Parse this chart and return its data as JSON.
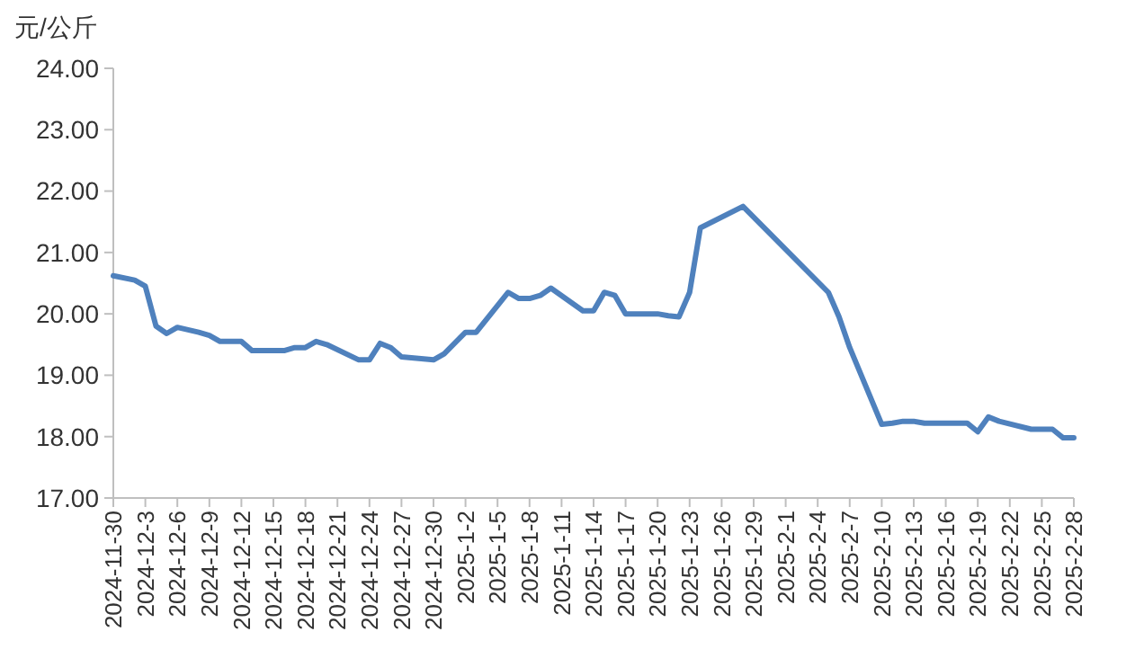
{
  "chart_data": {
    "type": "line",
    "ylabel": "元/公斤",
    "grid": false,
    "marker": "none",
    "line_style": "solid",
    "x": [
      "2024-11-30",
      "2024-12-02",
      "2024-12-03",
      "2024-12-04",
      "2024-12-05",
      "2024-12-06",
      "2024-12-08",
      "2024-12-09",
      "2024-12-10",
      "2024-12-12",
      "2024-12-13",
      "2024-12-16",
      "2024-12-17",
      "2024-12-18",
      "2024-12-19",
      "2024-12-20",
      "2024-12-23",
      "2024-12-24",
      "2024-12-25",
      "2024-12-26",
      "2024-12-27",
      "2024-12-30",
      "2024-12-31",
      "2025-01-02",
      "2025-01-03",
      "2025-01-06",
      "2025-01-07",
      "2025-01-08",
      "2025-01-09",
      "2025-01-10",
      "2025-01-13",
      "2025-01-14",
      "2025-01-15",
      "2025-01-16",
      "2025-01-17",
      "2025-01-20",
      "2025-01-21",
      "2025-01-22",
      "2025-01-23",
      "2025-01-24",
      "2025-01-28",
      "2025-02-05",
      "2025-02-06",
      "2025-02-07",
      "2025-02-10",
      "2025-02-11",
      "2025-02-12",
      "2025-02-13",
      "2025-02-14",
      "2025-02-18",
      "2025-02-19",
      "2025-02-20",
      "2025-02-21",
      "2025-02-24",
      "2025-02-25",
      "2025-02-26",
      "2025-02-27",
      "2025-02-28"
    ],
    "series": [
      {
        "color": "#4f81bd",
        "values": [
          20.62,
          20.55,
          20.45,
          19.8,
          19.68,
          19.78,
          19.7,
          19.65,
          19.55,
          19.55,
          19.4,
          19.4,
          19.45,
          19.45,
          19.55,
          19.5,
          19.25,
          19.25,
          19.52,
          19.45,
          19.3,
          19.25,
          19.35,
          19.7,
          19.7,
          20.35,
          20.25,
          20.25,
          20.3,
          20.42,
          20.05,
          20.05,
          20.35,
          20.3,
          20.0,
          20.0,
          19.97,
          19.95,
          20.35,
          21.4,
          21.75,
          20.35,
          19.95,
          19.45,
          18.2,
          18.22,
          18.25,
          18.25,
          18.22,
          18.22,
          18.08,
          18.32,
          18.25,
          18.12,
          18.12,
          18.12,
          17.98,
          17.98
        ]
      }
    ],
    "xlim": [
      "2024-11-30",
      "2025-02-28"
    ],
    "xticks": [
      {
        "value": "2024-11-30",
        "label": "2024-11-30"
      },
      {
        "value": "2024-12-03",
        "label": "2024-12-3"
      },
      {
        "value": "2024-12-06",
        "label": "2024-12-6"
      },
      {
        "value": "2024-12-09",
        "label": "2024-12-9"
      },
      {
        "value": "2024-12-12",
        "label": "2024-12-12"
      },
      {
        "value": "2024-12-15",
        "label": "2024-12-15"
      },
      {
        "value": "2024-12-18",
        "label": "2024-12-18"
      },
      {
        "value": "2024-12-21",
        "label": "2024-12-21"
      },
      {
        "value": "2024-12-24",
        "label": "2024-12-24"
      },
      {
        "value": "2024-12-27",
        "label": "2024-12-27"
      },
      {
        "value": "2024-12-30",
        "label": "2024-12-30"
      },
      {
        "value": "2025-01-02",
        "label": "2025-1-2"
      },
      {
        "value": "2025-01-05",
        "label": "2025-1-5"
      },
      {
        "value": "2025-01-08",
        "label": "2025-1-8"
      },
      {
        "value": "2025-01-11",
        "label": "2025-1-11"
      },
      {
        "value": "2025-01-14",
        "label": "2025-1-14"
      },
      {
        "value": "2025-01-17",
        "label": "2025-1-17"
      },
      {
        "value": "2025-01-20",
        "label": "2025-1-20"
      },
      {
        "value": "2025-01-23",
        "label": "2025-1-23"
      },
      {
        "value": "2025-01-26",
        "label": "2025-1-26"
      },
      {
        "value": "2025-01-29",
        "label": "2025-1-29"
      },
      {
        "value": "2025-02-01",
        "label": "2025-2-1"
      },
      {
        "value": "2025-02-04",
        "label": "2025-2-4"
      },
      {
        "value": "2025-02-07",
        "label": "2025-2-7"
      },
      {
        "value": "2025-02-10",
        "label": "2025-2-10"
      },
      {
        "value": "2025-02-13",
        "label": "2025-2-13"
      },
      {
        "value": "2025-02-16",
        "label": "2025-2-16"
      },
      {
        "value": "2025-02-19",
        "label": "2025-2-19"
      },
      {
        "value": "2025-02-22",
        "label": "2025-2-22"
      },
      {
        "value": "2025-02-25",
        "label": "2025-2-25"
      },
      {
        "value": "2025-02-28",
        "label": "2025-2-28"
      }
    ],
    "ylim": [
      17,
      24
    ],
    "yticks": [
      {
        "value": 17,
        "label": "17.00"
      },
      {
        "value": 18,
        "label": "18.00"
      },
      {
        "value": 19,
        "label": "19.00"
      },
      {
        "value": 20,
        "label": "20.00"
      },
      {
        "value": 21,
        "label": "21.00"
      },
      {
        "value": 22,
        "label": "22.00"
      },
      {
        "value": 23,
        "label": "23.00"
      },
      {
        "value": 24,
        "label": "24.00"
      }
    ]
  }
}
